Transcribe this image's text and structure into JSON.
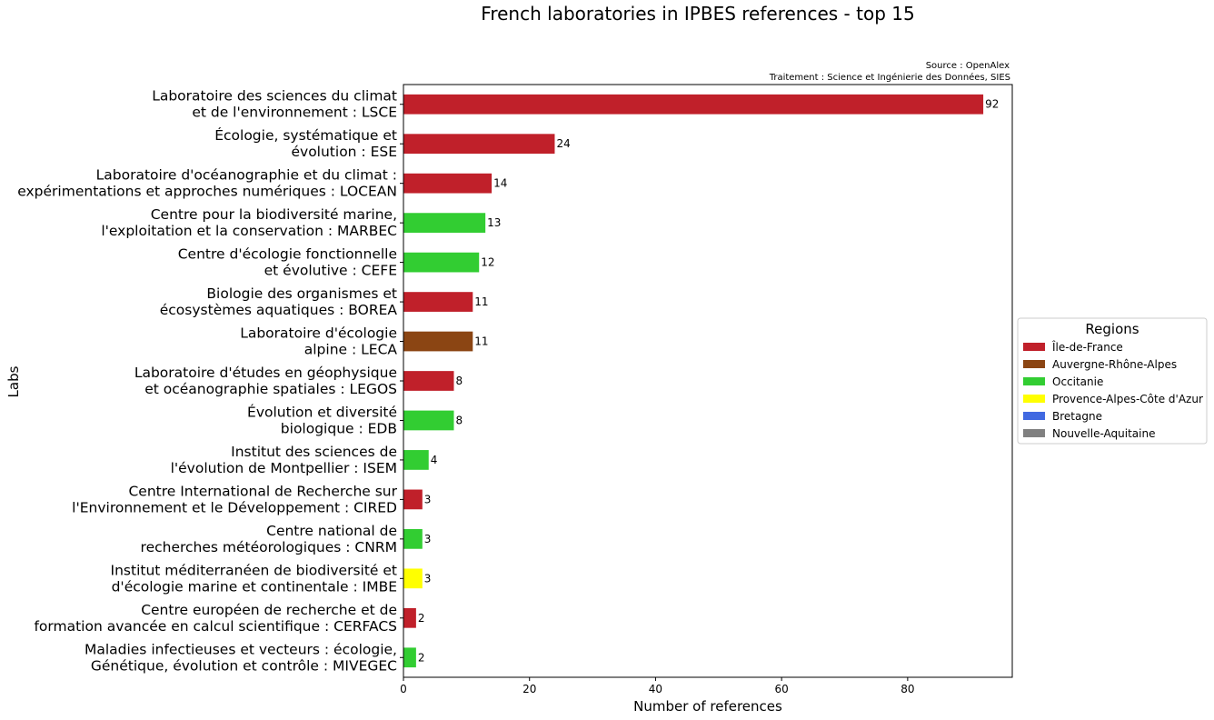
{
  "chart_data": {
    "type": "bar",
    "orientation": "horizontal",
    "title": "French laboratories in IPBES references - top 15",
    "source_line1": "Source : OpenAlex",
    "source_line2": "Traitement : Science et Ingénierie des Données, SIES",
    "xlabel": "Number of references",
    "ylabel": "Labs",
    "xlim": [
      0,
      96.6
    ],
    "xticks": [
      0,
      20,
      40,
      60,
      80
    ],
    "grid": false,
    "legend_position": "right",
    "legend_title": "Regions",
    "legend": [
      {
        "label": "Île-de-France",
        "color": "#c0202a"
      },
      {
        "label": "Auvergne-Rhône-Alpes",
        "color": "#8b4513"
      },
      {
        "label": "Occitanie",
        "color": "#32cd32"
      },
      {
        "label": "Provence-Alpes-Côte d'Azur",
        "color": "#ffff00"
      },
      {
        "label": "Bretagne",
        "color": "#4169e1"
      },
      {
        "label": "Nouvelle-Aquitaine",
        "color": "#808080"
      }
    ],
    "bars": [
      {
        "lines": [
          "Laboratoire des sciences du climat",
          "et de l'environnement : LSCE"
        ],
        "value": 92,
        "region": "Île-de-France"
      },
      {
        "lines": [
          "Écologie, systématique et",
          "évolution : ESE"
        ],
        "value": 24,
        "region": "Île-de-France"
      },
      {
        "lines": [
          "Laboratoire d'océanographie et du climat :",
          "expérimentations et approches numériques : LOCEAN"
        ],
        "value": 14,
        "region": "Île-de-France"
      },
      {
        "lines": [
          "Centre pour la biodiversité marine,",
          "l'exploitation et la conservation : MARBEC"
        ],
        "value": 13,
        "region": "Occitanie"
      },
      {
        "lines": [
          "Centre d'écologie fonctionnelle",
          "et évolutive : CEFE"
        ],
        "value": 12,
        "region": "Occitanie"
      },
      {
        "lines": [
          "Biologie des organismes et",
          "écosystèmes aquatiques : BOREA"
        ],
        "value": 11,
        "region": "Île-de-France"
      },
      {
        "lines": [
          "Laboratoire d'écologie",
          "alpine : LECA"
        ],
        "value": 11,
        "region": "Auvergne-Rhône-Alpes"
      },
      {
        "lines": [
          "Laboratoire d'études en géophysique",
          "et océanographie spatiales : LEGOS"
        ],
        "value": 8,
        "region": "Île-de-France"
      },
      {
        "lines": [
          "Évolution et diversité",
          "biologique : EDB"
        ],
        "value": 8,
        "region": "Occitanie"
      },
      {
        "lines": [
          "Institut des sciences de",
          "l'évolution de Montpellier : ISEM"
        ],
        "value": 4,
        "region": "Occitanie"
      },
      {
        "lines": [
          "Centre International de Recherche sur",
          "l'Environnement et le Développement : CIRED"
        ],
        "value": 3,
        "region": "Île-de-France"
      },
      {
        "lines": [
          "Centre national de",
          "recherches météorologiques : CNRM"
        ],
        "value": 3,
        "region": "Occitanie"
      },
      {
        "lines": [
          "Institut méditerranéen de biodiversité et",
          "d'écologie marine et continentale : IMBE"
        ],
        "value": 3,
        "region": "Provence-Alpes-Côte d'Azur"
      },
      {
        "lines": [
          "Centre européen de recherche et de",
          "formation avancée en calcul scientifique : CERFACS"
        ],
        "value": 2,
        "region": "Île-de-France"
      },
      {
        "lines": [
          "Maladies infectieuses et vecteurs : écologie,",
          "Génétique, évolution et contrôle : MIVEGEC"
        ],
        "value": 2,
        "region": "Occitanie"
      }
    ]
  }
}
